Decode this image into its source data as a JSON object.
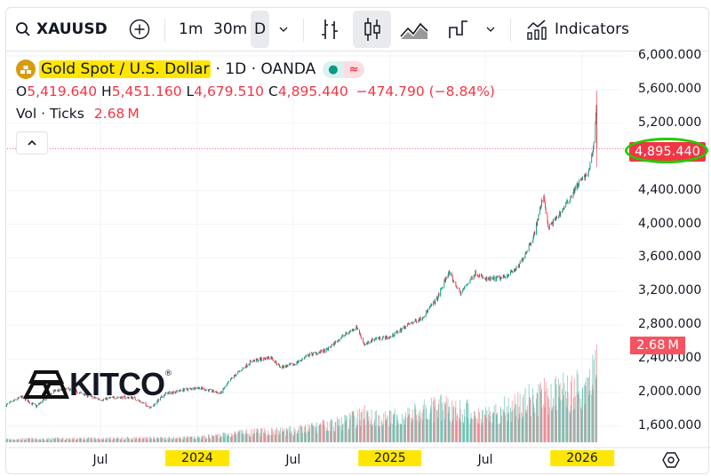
{
  "toolbar": {
    "symbol": "XAUUSD",
    "intervals": [
      "1m",
      "30m",
      "D"
    ],
    "selected_interval": "D",
    "indicators_label": "Indicators",
    "icons": [
      "search-icon",
      "add-symbol-icon",
      "chevron-down-icon",
      "bar-chart-icon",
      "candles-icon",
      "area-chart-icon",
      "step-line-icon",
      "chevron-down-icon",
      "indicators-icon"
    ]
  },
  "legend": {
    "title": "Gold Spot / U.S. Dollar",
    "meta": "· 1D · OANDA",
    "ohlc": {
      "o_label": "O",
      "o": "5,419.640",
      "h_label": "H",
      "h": "5,451.160",
      "l_label": "L",
      "l": "4,679.510",
      "c_label": "C",
      "c": "4,895.440",
      "change": "−474.790 (−8.84%)"
    },
    "volume_label": "Vol · Ticks",
    "volume_value": "2.68 M",
    "status_dot_symbol": "●",
    "status_wave_symbol": "≈"
  },
  "watermark": {
    "text": "KITCO",
    "registered": "®"
  },
  "colors": {
    "up": "#089981",
    "down": "#f23645",
    "highlight": "#ffe600",
    "annotation_circle": "#22cc00"
  },
  "chart_data": {
    "type": "candlestick",
    "title": "Gold Spot / U.S. Dollar · 1D · OANDA",
    "price_ticks": [
      "6,000.000",
      "5,600.000",
      "5,200.000",
      "4,400.000",
      "4,000.000",
      "3,600.000",
      "3,200.000",
      "2,800.000",
      "2,400.000",
      "2,000.000",
      "1,600.000"
    ],
    "price_tick_values": [
      6000,
      5600,
      5200,
      4400,
      4000,
      3600,
      3200,
      2800,
      2400,
      2000,
      1600
    ],
    "time_ticks": [
      {
        "label": "Jul",
        "date": "2023-07-01"
      },
      {
        "label": "2024",
        "date": "2024-01-01",
        "highlighted": true
      },
      {
        "label": "Jul",
        "date": "2024-07-01"
      },
      {
        "label": "2025",
        "date": "2025-01-01",
        "highlighted": true
      },
      {
        "label": "Jul",
        "date": "2025-07-01"
      },
      {
        "label": "2026",
        "date": "2026-01-01",
        "highlighted": true
      }
    ],
    "last_price_label": "4,895.440",
    "last_price": 4895.44,
    "last_volume_label": "2.68 M",
    "last_volume": 2.68,
    "approx_close_path": [
      [
        "2023-01-03",
        1850
      ],
      [
        "2023-02-01",
        1950
      ],
      [
        "2023-03-01",
        1835
      ],
      [
        "2023-04-05",
        2020
      ],
      [
        "2023-05-03",
        2040
      ],
      [
        "2023-06-01",
        1975
      ],
      [
        "2023-07-01",
        1915
      ],
      [
        "2023-08-01",
        1945
      ],
      [
        "2023-09-01",
        1940
      ],
      [
        "2023-10-05",
        1820
      ],
      [
        "2023-11-01",
        1985
      ],
      [
        "2023-12-04",
        2030
      ],
      [
        "2024-01-02",
        2060
      ],
      [
        "2024-02-14",
        1990
      ],
      [
        "2024-03-08",
        2180
      ],
      [
        "2024-04-12",
        2370
      ],
      [
        "2024-05-20",
        2420
      ],
      [
        "2024-06-07",
        2300
      ],
      [
        "2024-07-01",
        2330
      ],
      [
        "2024-08-01",
        2450
      ],
      [
        "2024-09-02",
        2500
      ],
      [
        "2024-10-01",
        2660
      ],
      [
        "2024-10-30",
        2780
      ],
      [
        "2024-11-14",
        2560
      ],
      [
        "2024-12-02",
        2640
      ],
      [
        "2025-01-02",
        2660
      ],
      [
        "2025-02-03",
        2800
      ],
      [
        "2025-03-03",
        2890
      ],
      [
        "2025-04-01",
        3120
      ],
      [
        "2025-04-22",
        3430
      ],
      [
        "2025-05-15",
        3180
      ],
      [
        "2025-06-13",
        3430
      ],
      [
        "2025-07-01",
        3340
      ],
      [
        "2025-08-01",
        3360
      ],
      [
        "2025-09-01",
        3480
      ],
      [
        "2025-10-01",
        3860
      ],
      [
        "2025-10-20",
        4360
      ],
      [
        "2025-10-28",
        3950
      ],
      [
        "2025-11-14",
        4080
      ],
      [
        "2025-12-01",
        4230
      ],
      [
        "2025-12-26",
        4500
      ],
      [
        "2026-01-13",
        4600
      ],
      [
        "2026-01-22",
        4900
      ],
      [
        "2026-01-28",
        5400
      ]
    ],
    "last_candle": {
      "date": "2026-01-29",
      "open": 5419.64,
      "high": 5451.16,
      "low": 4679.51,
      "close": 4895.44
    },
    "approx_volume_path_millions": [
      [
        "2023-01-03",
        0.08
      ],
      [
        "2023-07-01",
        0.1
      ],
      [
        "2024-01-02",
        0.12
      ],
      [
        "2024-04-01",
        0.25
      ],
      [
        "2024-07-01",
        0.3
      ],
      [
        "2024-10-01",
        0.5
      ],
      [
        "2024-11-14",
        0.7
      ],
      [
        "2025-01-02",
        0.6
      ],
      [
        "2025-04-15",
        0.9
      ],
      [
        "2025-07-01",
        0.7
      ],
      [
        "2025-10-20",
        1.2
      ],
      [
        "2026-01-02",
        1.4
      ],
      [
        "2026-01-28",
        1.9
      ]
    ],
    "y_scale": "linear",
    "grid": true
  }
}
